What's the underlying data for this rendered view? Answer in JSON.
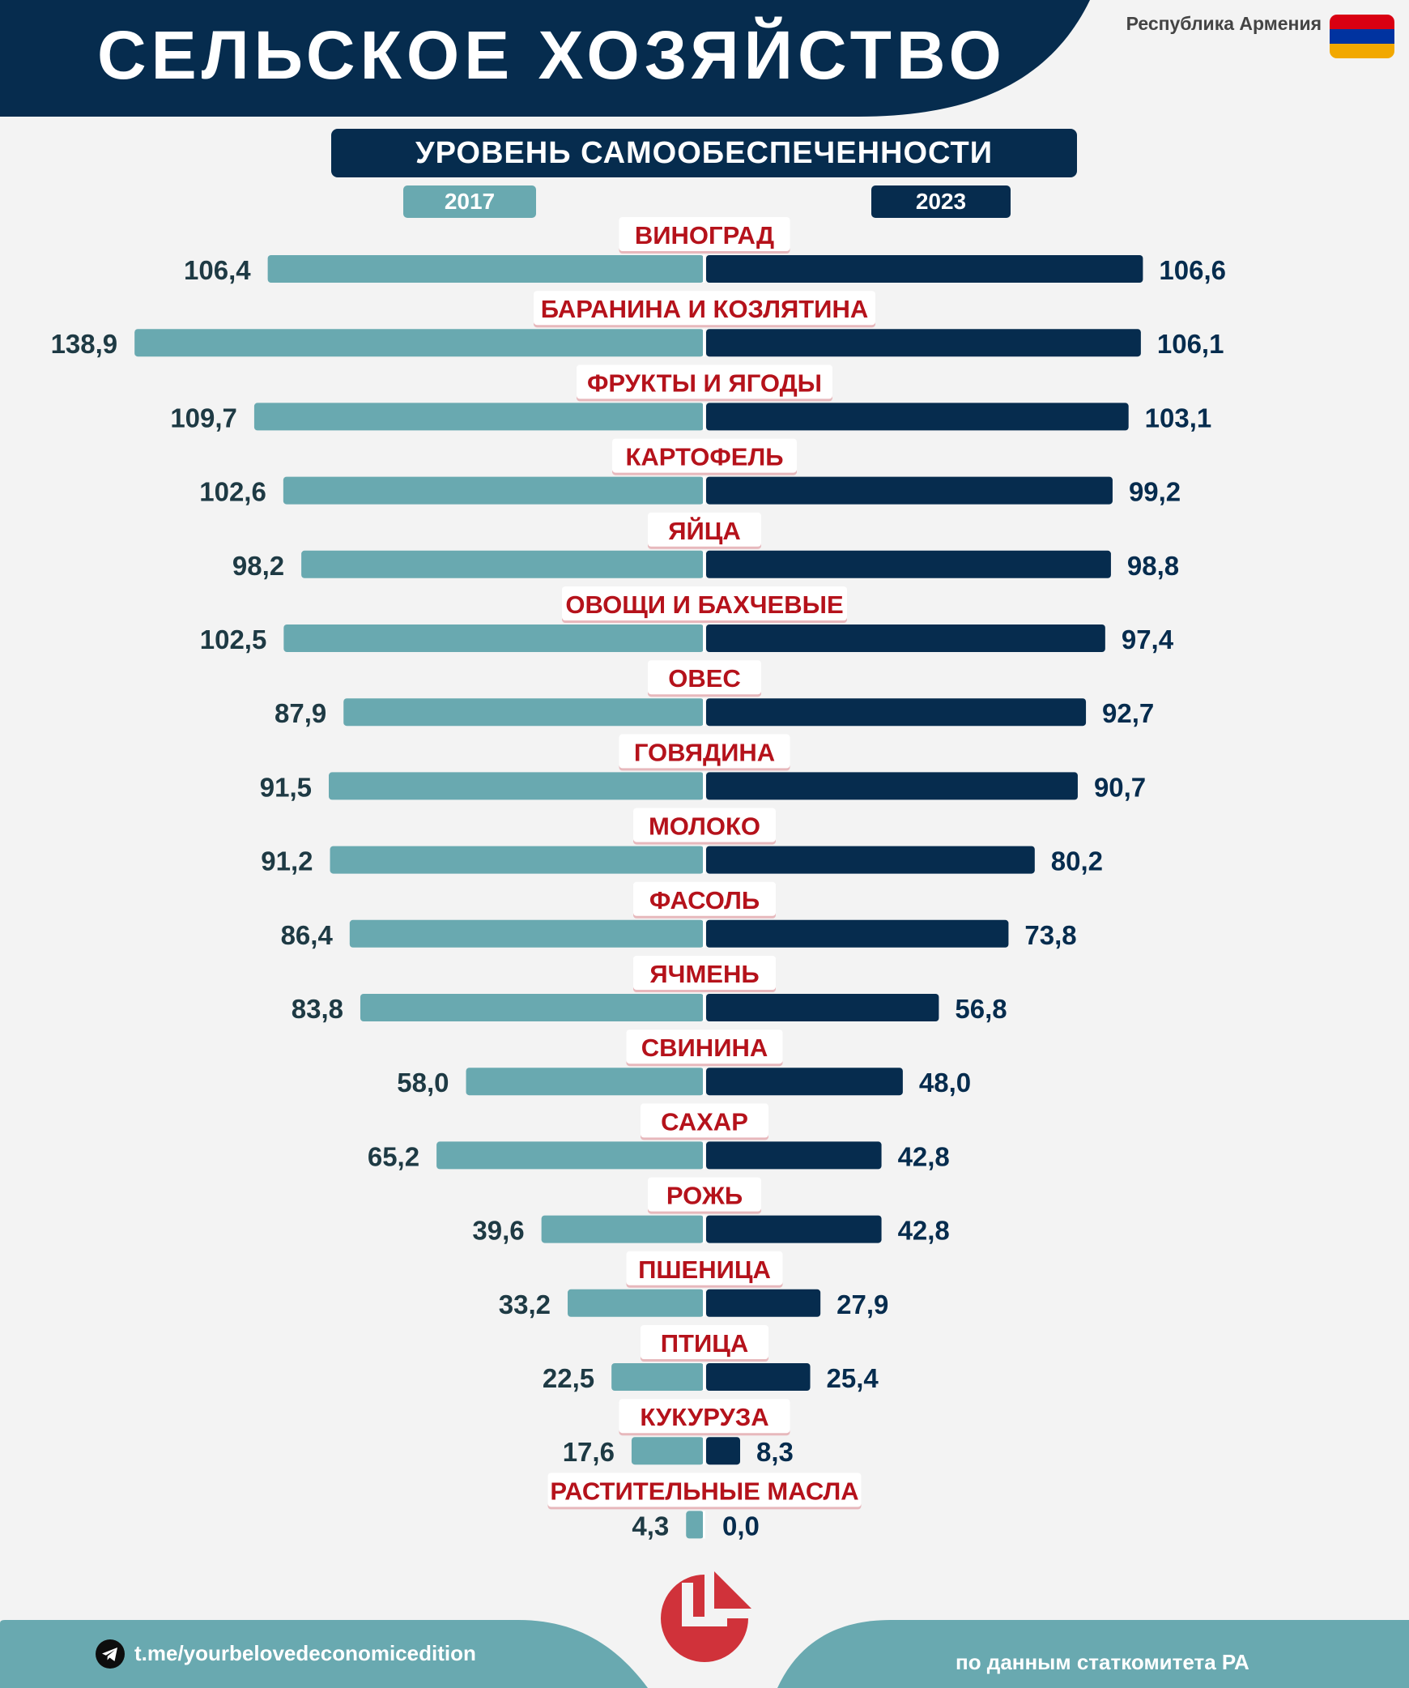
{
  "header": {
    "title": "СЕЛЬСКОЕ ХОЗЯЙСТВО",
    "country": "Республика Армения",
    "flag_colors": [
      "#d90012",
      "#0033a0",
      "#f2a800"
    ]
  },
  "chart_data": {
    "type": "bar",
    "title": "УРОВЕНЬ САМООБЕСПЕЧЕННОСТИ",
    "categories": [
      "ВИНОГРАД",
      "БАРАНИНА И КОЗЛЯТИНА",
      "ФРУКТЫ И ЯГОДЫ",
      "КАРТОФЕЛЬ",
      "ЯЙЦА",
      "ОВОЩИ И БАХЧЕВЫЕ",
      "ОВЕС",
      "ГОВЯДИНА",
      "МОЛОКО",
      "ФАСОЛЬ",
      "ЯЧМЕНЬ",
      "СВИНИНА",
      "САХАР",
      "РОЖЬ",
      "ПШЕНИЦА",
      "ПТИЦА",
      "КУКУРУЗА",
      "РАСТИТЕЛЬНЫЕ МАСЛА"
    ],
    "series": [
      {
        "name": "2017",
        "color": "#69a9b0",
        "values": [
          106.4,
          138.9,
          109.7,
          102.6,
          98.2,
          102.5,
          87.9,
          91.5,
          91.2,
          86.4,
          83.8,
          58.0,
          65.2,
          39.6,
          33.2,
          22.5,
          17.6,
          4.3
        ],
        "labels": [
          "106,4",
          "138,9",
          "109,7",
          "102,6",
          "98,2",
          "102,5",
          "87,9",
          "91,5",
          "91,2",
          "86,4",
          "83,8",
          "58,0",
          "65,2",
          "39,6",
          "33,2",
          "22,5",
          "17,6",
          "4,3"
        ]
      },
      {
        "name": "2023",
        "color": "#062c4e",
        "values": [
          106.6,
          106.1,
          103.1,
          99.2,
          98.8,
          97.4,
          92.7,
          90.7,
          80.2,
          73.8,
          56.8,
          48.0,
          42.8,
          42.8,
          27.9,
          25.4,
          8.3,
          0.0
        ],
        "labels": [
          "106,6",
          "106,1",
          "103,1",
          "99,2",
          "98,8",
          "97,4",
          "92,7",
          "90,7",
          "80,2",
          "73,8",
          "56,8",
          "48,0",
          "42,8",
          "42,8",
          "27,9",
          "25,4",
          "8,3",
          "0,0"
        ]
      }
    ],
    "category_color": "#b5121b",
    "label_colors": {
      "2017": "#1e3a44",
      "2023": "#062c4e"
    }
  },
  "footer": {
    "link": "t.me/yourbelovedeconomicedition",
    "source": "по данным статкомитета РА",
    "color": "#69a9b0",
    "icon": "telegram-icon"
  }
}
